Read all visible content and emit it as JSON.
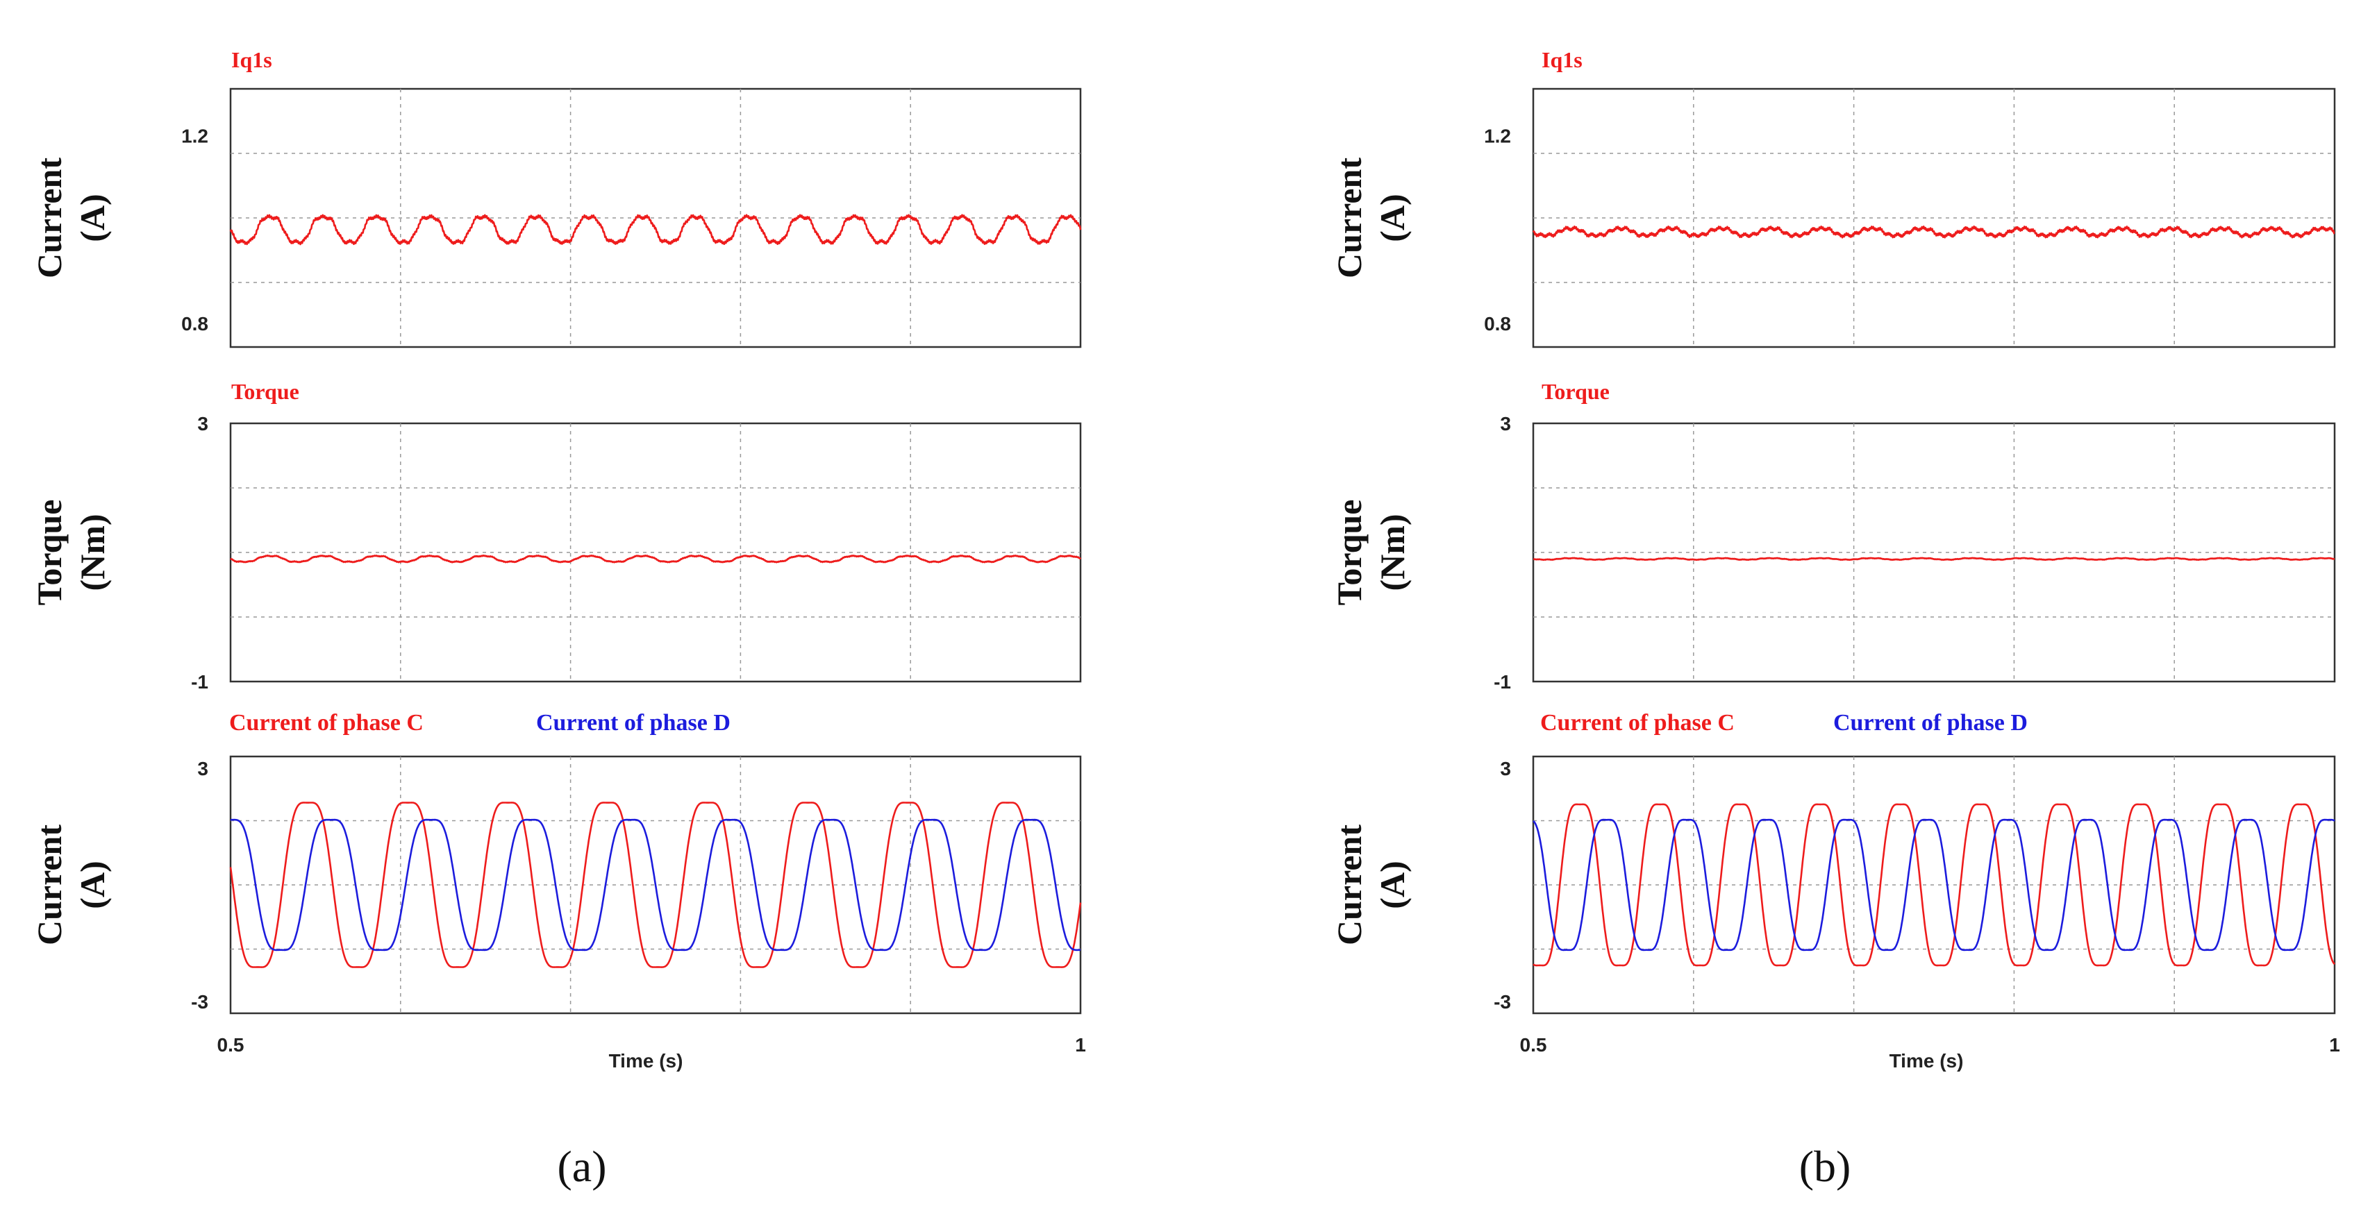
{
  "figure": {
    "panel_labels": [
      "(a)",
      "(b)"
    ],
    "time_label": "Time (s)",
    "x_ticks": [
      "0.5",
      "1"
    ]
  },
  "chart_data": [
    {
      "panel": "(a)",
      "subplots": [
        {
          "type": "line",
          "title": "Iq1s",
          "ylabel": [
            "Current",
            "(A)"
          ],
          "xlim": [
            0.5,
            1.0
          ],
          "ylim": [
            0.75,
            1.3
          ],
          "yticks": [
            "1.2",
            "0.8"
          ],
          "ytick_values": [
            1.2,
            0.8
          ],
          "grid": true,
          "series": [
            {
              "name": "Iq1s",
              "color": "#ee1c1c",
              "mean": 1.0,
              "amplitude": 0.03,
              "cycles": 16,
              "phase": 3.14,
              "noise": 0.005,
              "x": [
                0.5,
                1.0
              ],
              "y_range": [
                0.97,
                1.03
              ]
            }
          ]
        },
        {
          "type": "line",
          "title": "Torque",
          "ylabel": [
            "Torque",
            "(Nm)"
          ],
          "xlim": [
            0.5,
            1.0
          ],
          "ylim": [
            -1,
            3
          ],
          "yticks": [
            "3",
            "-1"
          ],
          "ytick_values": [
            3,
            -1
          ],
          "grid": true,
          "series": [
            {
              "name": "Torque",
              "color": "#ee1c1c",
              "mean": 0.9,
              "amplitude": 0.05,
              "cycles": 16,
              "phase": 3.14,
              "noise": 0.01,
              "x": [
                0.5,
                1.0
              ],
              "y_range": [
                0.85,
                0.95
              ]
            }
          ]
        },
        {
          "type": "line",
          "title": "",
          "legend": [
            "Current  of phase C",
            "Current  of phase D"
          ],
          "ylabel": [
            "Current",
            "(A)"
          ],
          "xlim": [
            0.5,
            1.0
          ],
          "ylim": [
            -3.3,
            3.3
          ],
          "yticks": [
            "3",
            "-3"
          ],
          "ytick_values": [
            3,
            -3
          ],
          "grid": true,
          "series": [
            {
              "name": "Current  of phase C",
              "color": "#ee1c1c",
              "mean": 0,
              "amplitude": 2.4,
              "cycles": 8.5,
              "phase": 3.0,
              "noise": 0,
              "x": [
                0.5,
                1.0
              ],
              "y_range": [
                -2.4,
                2.4
              ]
            },
            {
              "name": "Current  of phase D",
              "color": "#1c1cdd",
              "mean": 0,
              "amplitude": 1.9,
              "cycles": 8.5,
              "phase": 1.57,
              "noise": 0,
              "x": [
                0.5,
                1.0
              ],
              "y_range": [
                -1.9,
                1.9
              ]
            }
          ]
        }
      ]
    },
    {
      "panel": "(b)",
      "subplots": [
        {
          "type": "line",
          "title": "Iq1s",
          "ylabel": [
            "Current",
            "(A)"
          ],
          "xlim": [
            0.5,
            1.0
          ],
          "ylim": [
            0.75,
            1.3
          ],
          "yticks": [
            "1.2",
            "0.8"
          ],
          "ytick_values": [
            1.2,
            0.8
          ],
          "grid": true,
          "series": [
            {
              "name": "Iq1s",
              "color": "#ee1c1c",
              "mean": 0.995,
              "amplitude": 0.008,
              "cycles": 16,
              "phase": 3.14,
              "noise": 0.005,
              "x": [
                0.5,
                1.0
              ],
              "y_range": [
                0.985,
                1.005
              ]
            }
          ]
        },
        {
          "type": "line",
          "title": "Torque",
          "ylabel": [
            "Torque",
            "(Nm)"
          ],
          "xlim": [
            0.5,
            1.0
          ],
          "ylim": [
            -1,
            3
          ],
          "yticks": [
            "3",
            "-1"
          ],
          "ytick_values": [
            3,
            -1
          ],
          "grid": true,
          "series": [
            {
              "name": "Torque",
              "color": "#ee1c1c",
              "mean": 0.9,
              "amplitude": 0.012,
              "cycles": 16,
              "phase": 3.14,
              "noise": 0.006,
              "x": [
                0.5,
                1.0
              ],
              "y_range": [
                0.88,
                0.92
              ]
            }
          ]
        },
        {
          "type": "line",
          "title": "",
          "legend": [
            "Current  of phase C",
            "Current  of phase D"
          ],
          "ylabel": [
            "Current",
            "(A)"
          ],
          "xlim": [
            0.5,
            1.0
          ],
          "ylim": [
            -3.3,
            3.3
          ],
          "yticks": [
            "3",
            "-3"
          ],
          "ytick_values": [
            3,
            -3
          ],
          "grid": true,
          "series": [
            {
              "name": "Current  of phase C",
              "color": "#ee1c1c",
              "mean": 0,
              "amplitude": 2.35,
              "cycles": 10,
              "phase": 4.2,
              "noise": 0,
              "x": [
                0.5,
                1.0
              ],
              "y_range": [
                -2.35,
                2.35
              ]
            },
            {
              "name": "Current  of phase D",
              "color": "#1c1cdd",
              "mean": 0,
              "amplitude": 1.9,
              "cycles": 10,
              "phase": 2.1,
              "noise": 0,
              "x": [
                0.5,
                1.0
              ],
              "y_range": [
                -1.9,
                1.9
              ]
            }
          ]
        }
      ]
    }
  ]
}
